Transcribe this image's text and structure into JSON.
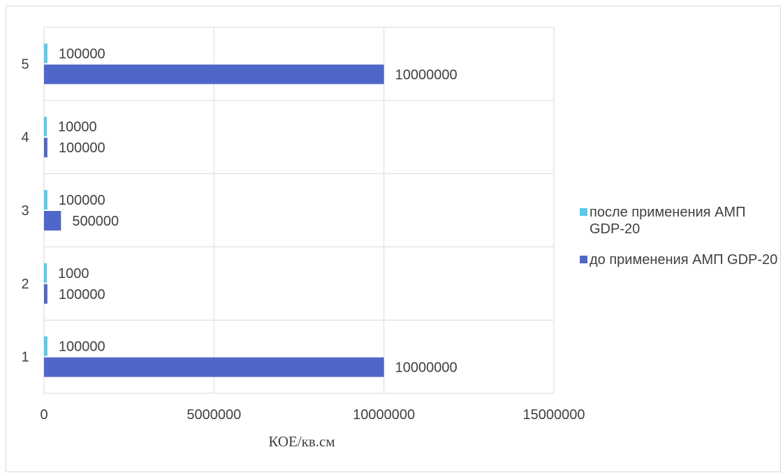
{
  "chart_data": {
    "type": "bar",
    "orientation": "horizontal",
    "categories": [
      "1",
      "2",
      "3",
      "4",
      "5"
    ],
    "series": [
      {
        "name": "до применения АМП GDP-20",
        "color": "#4f67c9",
        "values": [
          10000000,
          100000,
          500000,
          100000,
          10000000
        ]
      },
      {
        "name": "после применения АМП GDP-20",
        "color": "#5bc8ec",
        "values": [
          100000,
          1000,
          100000,
          10000,
          100000
        ]
      }
    ],
    "xlabel": "КОЕ/кв.см",
    "xlim": [
      0,
      15000000
    ],
    "xticks": [
      "0",
      "5000000",
      "10000000",
      "15000000"
    ],
    "grid": true,
    "legend_position": "right"
  }
}
